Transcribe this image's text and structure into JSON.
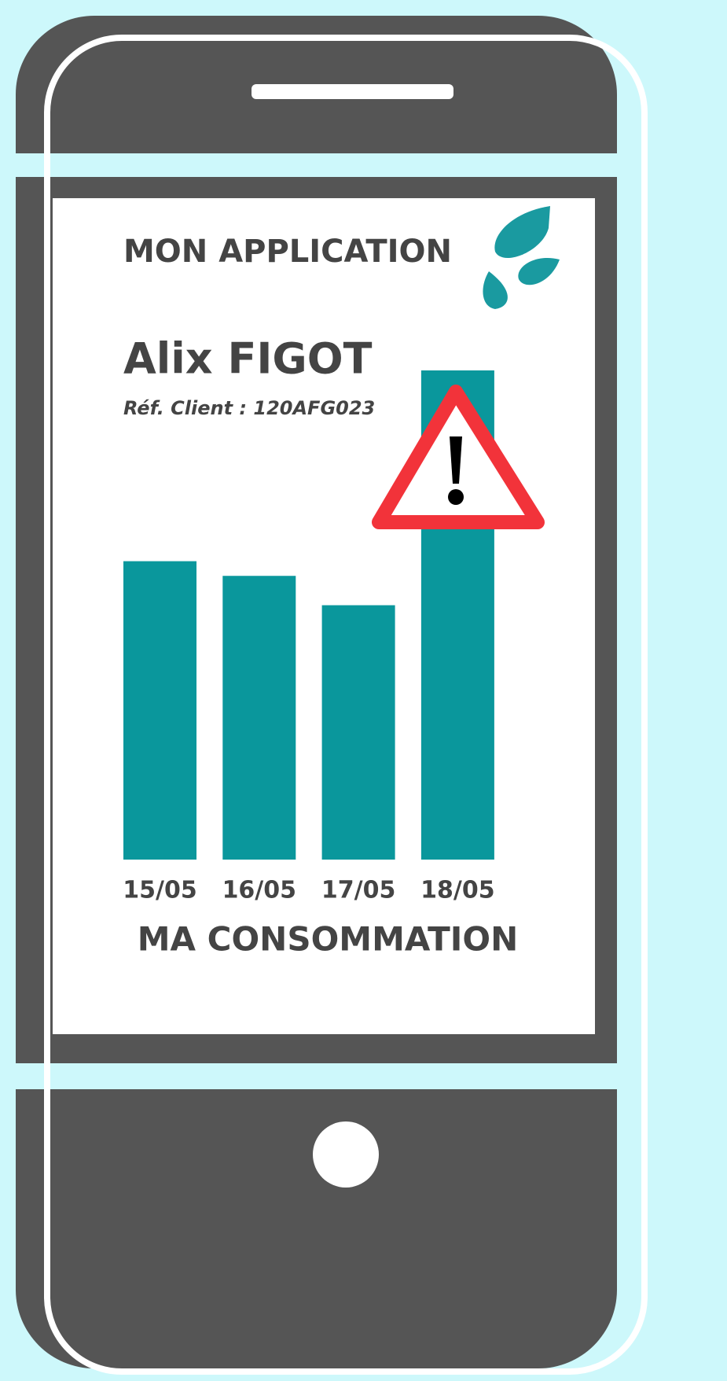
{
  "app": {
    "title": "MON APPLICATION",
    "name": "Alix FIGOT",
    "reference": "Réf. Client : 120AFG023"
  },
  "chart_data": {
    "type": "bar",
    "title": "MA CONSOMMATION",
    "categories": [
      "15/05",
      "16/05",
      "17/05",
      "18/05"
    ],
    "values": [
      61,
      58,
      52,
      100
    ],
    "color": "#0a979c"
  }
}
